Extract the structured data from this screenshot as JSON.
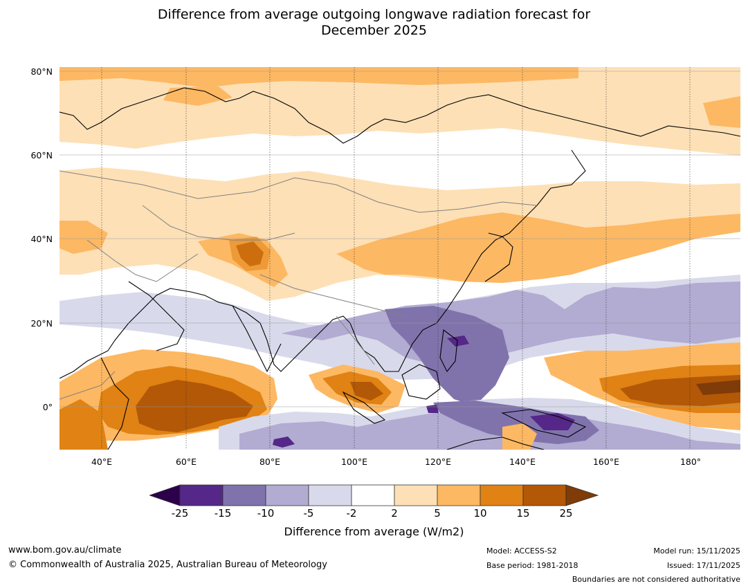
{
  "title": {
    "line1": "Difference from average outgoing longwave radiation forecast for",
    "line2": "December 2025"
  },
  "map": {
    "lat_labels": [
      "80°N",
      "60°N",
      "40°N",
      "20°N",
      "0°"
    ],
    "lon_labels": [
      "40°E",
      "60°E",
      "80°E",
      "100°E",
      "120°E",
      "140°E",
      "160°E",
      "180°"
    ],
    "extent": {
      "lon_min": 30,
      "lon_max": 192,
      "lat_min": -10,
      "lat_max": 81
    }
  },
  "colorbar": {
    "ticks": [
      "-25",
      "-15",
      "-10",
      "-5",
      "-2",
      "2",
      "5",
      "10",
      "15",
      "25"
    ],
    "colors": [
      "#542788",
      "#8073ac",
      "#b2abd2",
      "#d8daeb",
      "#ffffff",
      "#fee0b6",
      "#fdb863",
      "#e08214",
      "#b35806"
    ],
    "under_color": "#2d004b",
    "over_color": "#7f3b08",
    "label": "Difference from average (W/m2)"
  },
  "footer": {
    "website": "www.bom.gov.au/climate",
    "copyright": "© Commonwealth of Australia 2025, Australian Bureau of Meteorology",
    "model": "Model: ACCESS-S2",
    "base_period": "Base period: 1981-2018",
    "model_run": "Model run: 15/11/2025",
    "issued": "Issued: 17/11/2025",
    "disclaimer": "Boundaries are not considered authoritative"
  }
}
